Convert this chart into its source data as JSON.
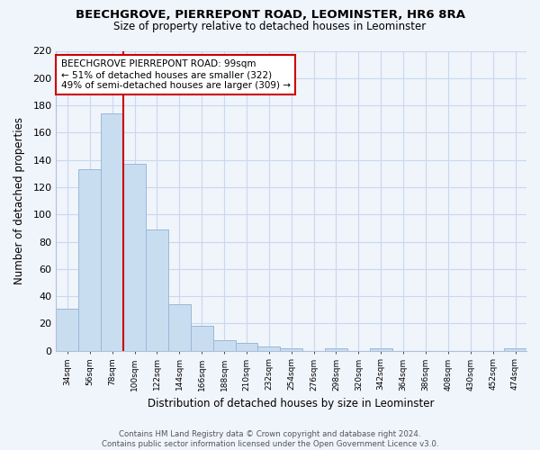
{
  "title": "BEECHGROVE, PIERREPONT ROAD, LEOMINSTER, HR6 8RA",
  "subtitle": "Size of property relative to detached houses in Leominster",
  "xlabel": "Distribution of detached houses by size in Leominster",
  "ylabel": "Number of detached properties",
  "bar_values": [
    31,
    133,
    174,
    137,
    89,
    34,
    18,
    8,
    6,
    3,
    2,
    0,
    2,
    0,
    2,
    0,
    0,
    0,
    0,
    0,
    2
  ],
  "bar_labels": [
    "34sqm",
    "56sqm",
    "78sqm",
    "100sqm",
    "122sqm",
    "144sqm",
    "166sqm",
    "188sqm",
    "210sqm",
    "232sqm",
    "254sqm",
    "276sqm",
    "298sqm",
    "320sqm",
    "342sqm",
    "364sqm",
    "386sqm",
    "408sqm",
    "430sqm",
    "452sqm",
    "474sqm"
  ],
  "bar_color": "#c8ddf0",
  "bar_edge_color": "#9ab8d8",
  "vline_x": 3,
  "vline_color": "#cc0000",
  "annotation_title": "BEECHGROVE PIERREPONT ROAD: 99sqm",
  "annotation_line1": "← 51% of detached houses are smaller (322)",
  "annotation_line2": "49% of semi-detached houses are larger (309) →",
  "annotation_box_color": "#ffffff",
  "annotation_box_edge": "#cc0000",
  "ylim": [
    0,
    220
  ],
  "yticks": [
    0,
    20,
    40,
    60,
    80,
    100,
    120,
    140,
    160,
    180,
    200,
    220
  ],
  "footer_line1": "Contains HM Land Registry data © Crown copyright and database right 2024.",
  "footer_line2": "Contains public sector information licensed under the Open Government Licence v3.0.",
  "bg_color": "#f0f4fb"
}
